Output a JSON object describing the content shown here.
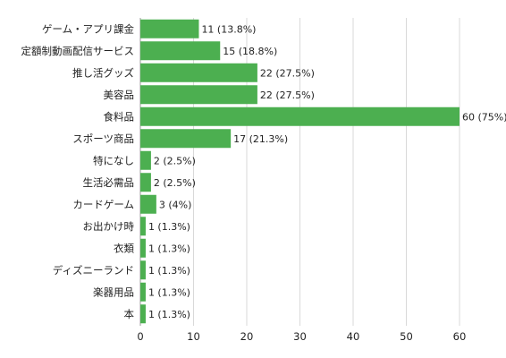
{
  "chart_data": {
    "type": "bar",
    "orientation": "horizontal",
    "categories": [
      "ゲーム・アプリ課金",
      "定額制動画配信サービス",
      "推し活グッズ",
      "美容品",
      "食料品",
      "スポーツ商品",
      "特になし",
      "生活必需品",
      "カードゲーム",
      "お出かけ時",
      "衣類",
      "ディズニーランド",
      "楽器用品",
      "本"
    ],
    "values": [
      11,
      15,
      22,
      22,
      60,
      17,
      2,
      2,
      3,
      1,
      1,
      1,
      1,
      1
    ],
    "value_labels": [
      "11 (13.8%)",
      "15 (18.8%)",
      "22 (27.5%)",
      "22 (27.5%)",
      "60 (75%)",
      "17 (21.3%)",
      "2 (2.5%)",
      "2 (2.5%)",
      "3 (4%)",
      "1 (1.3%)",
      "1 (1.3%)",
      "1 (1.3%)",
      "1 (1.3%)",
      "1 (1.3%)"
    ],
    "xlim": [
      0,
      60
    ],
    "xticks": [
      0,
      10,
      20,
      30,
      40,
      50,
      60
    ],
    "grid": true,
    "legend": "none",
    "bar_color": "#4caf50"
  }
}
